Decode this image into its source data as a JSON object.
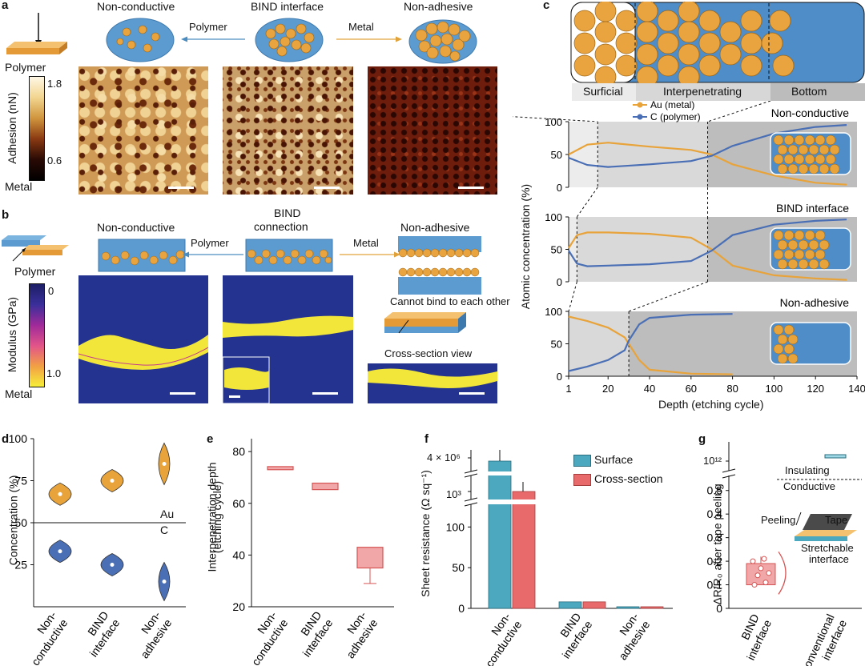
{
  "panel_a": {
    "letter": "a",
    "titles": [
      "Non-conductive",
      "BIND interface",
      "Non-adhesive"
    ],
    "arrow_left": "Polymer",
    "arrow_right": "Metal",
    "colorbar_top": "Polymer",
    "colorbar_bottom": "Metal",
    "colorbar_title": "Adhesion (nN)",
    "colorbar_max": "1.8",
    "colorbar_min": "0.6"
  },
  "panel_b": {
    "letter": "b",
    "titles": [
      "Non-conductive",
      "BIND\nconnection",
      "Non-adhesive"
    ],
    "title_mid_1": "BIND",
    "title_mid_2": "connection",
    "arrow_left": "Polymer",
    "arrow_right": "Metal",
    "colorbar_top": "Polymer",
    "colorbar_bottom": "Metal",
    "colorbar_title": "Modulus (GPa)",
    "colorbar_max": "0",
    "colorbar_min": "1.0",
    "note_bind": "Cannot bind to each other",
    "note_section": "Cross-section view"
  },
  "panel_c": {
    "letter": "c",
    "regions": [
      "Surficial",
      "Interpenetrating",
      "Bottom"
    ],
    "legend": [
      "Au (metal)",
      "C (polymer)"
    ],
    "subtitles": [
      "Non-conductive",
      "BIND interface",
      "Non-adhesive"
    ],
    "ylabel": "Atomic concentration (%)",
    "xlabel": "Depth (etching cycle)",
    "xticks": [
      "1",
      "20",
      "40",
      "60",
      "80",
      "100",
      "120",
      "140"
    ],
    "yticks": [
      "0",
      "50",
      "100"
    ]
  },
  "panel_d": {
    "letter": "d",
    "ylabel": "Concentration (%)",
    "yticks": [
      "25",
      "50",
      "75",
      "100"
    ],
    "label_au": "Au",
    "label_c": "C",
    "categories": [
      [
        "Non-",
        "conductive"
      ],
      [
        "BIND",
        "interface"
      ],
      [
        "Non-",
        "adhesive"
      ]
    ]
  },
  "panel_e": {
    "letter": "e",
    "ylabel_1": "Interpenetration depth",
    "ylabel_2": "(etching cycle)",
    "yticks": [
      "20",
      "40",
      "60",
      "80"
    ],
    "categories": [
      [
        "Non-",
        "conductive"
      ],
      [
        "BIND",
        "interface"
      ],
      [
        "Non-",
        "adhesive"
      ]
    ]
  },
  "panel_f": {
    "letter": "f",
    "ylabel": "Sheet resistance (Ω sq⁻¹)",
    "ytick_top": "4 × 10⁶",
    "ytick_mid": "10³",
    "yticks": [
      "0",
      "50",
      "100"
    ],
    "legend": [
      "Surface",
      "Cross-section"
    ],
    "categories": [
      [
        "Non-",
        "conductive"
      ],
      [
        "BIND",
        "interface"
      ],
      [
        "Non-",
        "adhesive"
      ]
    ]
  },
  "panel_g": {
    "letter": "g",
    "ylabel": "ΔR/R₀ after tape peeling",
    "ytick_top": "10¹²",
    "yticks": [
      "0",
      "0.1",
      "0.2",
      "0.3",
      "0.4",
      "0.5"
    ],
    "insulating": "Insulating",
    "conductive": "Conductive",
    "peeling": "Peeling",
    "tape": "Tape",
    "stretch_1": "Stretchable",
    "stretch_2": "interface",
    "categories": [
      [
        "BIND",
        "interface"
      ],
      [
        "Conventional",
        "interface"
      ]
    ]
  },
  "colors": {
    "au": "#E8A33A",
    "c": "#4A6FB5",
    "surface": "#4BA8BF",
    "cross": "#E86A6A",
    "modulus_bg": "#23338F",
    "modulus_yellow": "#F2E63A"
  },
  "chart_data": [
    {
      "type": "line",
      "title": "Non-conductive",
      "xlabel": "Depth (etching cycle)",
      "ylabel": "Atomic concentration (%)",
      "xlim": [
        1,
        140
      ],
      "ylim": [
        0,
        100
      ],
      "series": [
        {
          "name": "Au (metal)",
          "x": [
            1,
            10,
            20,
            40,
            60,
            70,
            80,
            100,
            120,
            135
          ],
          "values": [
            50,
            65,
            68,
            62,
            57,
            50,
            35,
            18,
            7,
            4
          ]
        },
        {
          "name": "C (polymer)",
          "x": [
            1,
            10,
            20,
            40,
            60,
            70,
            80,
            100,
            120,
            135
          ],
          "values": [
            45,
            34,
            31,
            35,
            40,
            48,
            63,
            82,
            92,
            95
          ]
        }
      ]
    },
    {
      "type": "line",
      "title": "BIND interface",
      "xlabel": "Depth (etching cycle)",
      "ylabel": "Atomic concentration (%)",
      "xlim": [
        1,
        140
      ],
      "ylim": [
        0,
        100
      ],
      "series": [
        {
          "name": "Au (metal)",
          "x": [
            1,
            5,
            10,
            20,
            40,
            60,
            70,
            80,
            100,
            120,
            135
          ],
          "values": [
            52,
            72,
            76,
            76,
            74,
            68,
            50,
            25,
            10,
            5,
            3
          ]
        },
        {
          "name": "C (polymer)",
          "x": [
            1,
            5,
            10,
            20,
            40,
            60,
            70,
            80,
            100,
            120,
            135
          ],
          "values": [
            48,
            28,
            24,
            25,
            27,
            32,
            48,
            72,
            88,
            94,
            96
          ]
        }
      ]
    },
    {
      "type": "line",
      "title": "Non-adhesive",
      "xlabel": "Depth (etching cycle)",
      "ylabel": "Atomic concentration (%)",
      "xlim": [
        1,
        140
      ],
      "ylim": [
        0,
        100
      ],
      "series": [
        {
          "name": "Au (metal)",
          "x": [
            1,
            10,
            20,
            28,
            30,
            35,
            40,
            60,
            80
          ],
          "values": [
            92,
            85,
            75,
            60,
            50,
            25,
            10,
            4,
            3
          ]
        },
        {
          "name": "C (polymer)",
          "x": [
            1,
            10,
            20,
            28,
            30,
            35,
            40,
            60,
            80
          ],
          "values": [
            8,
            15,
            25,
            40,
            55,
            80,
            90,
            95,
            96
          ]
        }
      ]
    },
    {
      "type": "violin",
      "title": "",
      "ylabel": "Concentration (%)",
      "ylim": [
        0,
        100
      ],
      "categories": [
        "Non-conductive",
        "BIND interface",
        "Non-adhesive"
      ],
      "series": [
        {
          "name": "Au",
          "values": [
            67,
            75,
            85
          ]
        },
        {
          "name": "C",
          "values": [
            33,
            25,
            15
          ]
        }
      ]
    },
    {
      "type": "box",
      "title": "",
      "ylabel": "Interpenetration depth (etching cycle)",
      "ylim": [
        20,
        85
      ],
      "categories": [
        "Non-conductive",
        "BIND interface",
        "Non-adhesive"
      ],
      "values": [
        73.5,
        66.5,
        39
      ]
    },
    {
      "type": "bar",
      "title": "",
      "ylabel": "Sheet resistance (Ω sq⁻¹)",
      "categories": [
        "Non-conductive",
        "BIND interface",
        "Non-adhesive"
      ],
      "series": [
        {
          "name": "Surface",
          "values": [
            4000000,
            8,
            2
          ]
        },
        {
          "name": "Cross-section",
          "values": [
            1000,
            8,
            2
          ]
        }
      ]
    },
    {
      "type": "box",
      "title": "",
      "ylabel": "ΔR/R₀ after tape peeling",
      "categories": [
        "BIND interface",
        "Conventional interface"
      ],
      "values": [
        0.15,
        1000000000000
      ]
    }
  ]
}
